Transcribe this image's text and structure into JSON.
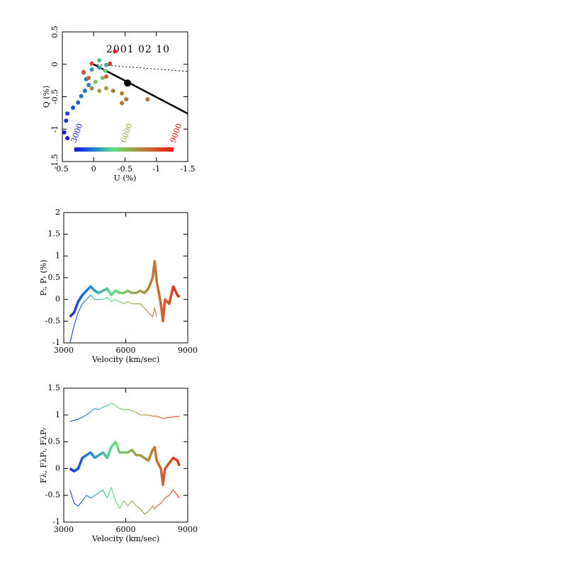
{
  "chart_data": [
    {
      "type": "scatter",
      "title": "2001 02 10",
      "x_label": "U (%)",
      "y_label": "Q (%)",
      "xlim": [
        0.5,
        -1.5
      ],
      "xticks": [
        0.5,
        0,
        -0.5,
        -1,
        -1.5
      ],
      "ylim": [
        -1.5,
        0.5
      ],
      "yticks": [
        -1.5,
        -1,
        -0.5,
        0,
        0.5
      ],
      "x": [
        0.42,
        0.47,
        0.44,
        0.42,
        0.33,
        0.25,
        0.2,
        0.14,
        0.08,
        0.12,
        0.16,
        0.03,
        -0.09,
        -0.2,
        -0.09,
        -0.18,
        -0.14,
        -0.03,
        -0.2,
        -0.09,
        0.03,
        -0.31,
        -0.45,
        -0.52,
        -0.45,
        -0.86,
        -0.34,
        -0.26,
        0.03,
        0.16,
        0.08,
        -0.2
      ],
      "y": [
        -1.14,
        -1.05,
        -0.87,
        -0.76,
        -0.67,
        -0.59,
        -0.49,
        -0.41,
        -0.32,
        -0.23,
        -0.13,
        -0.08,
        -0.05,
        -0.01,
        0.06,
        -0.1,
        -0.21,
        -0.27,
        -0.37,
        -0.41,
        -0.37,
        -0.41,
        -0.45,
        -0.54,
        -0.6,
        -0.54,
        0.2,
        0.01,
        0.01,
        -0.12,
        -0.21,
        -0.19
      ],
      "colors": [
        "#1818d8",
        "#1818d8",
        "#1830d8",
        "#1840d8",
        "#1850d8",
        "#2060d0",
        "#2070d0",
        "#2070d0",
        "#2080d0",
        "#2878c8",
        "#3080c0",
        "#3090c0",
        "#30a0b0",
        "#40b0a0",
        "#50c090",
        "#60d080",
        "#70c070",
        "#80c060",
        "#a0a040",
        "#a0a040",
        "#a09040",
        "#b08030",
        "#b08030",
        "#b07030",
        "#b07030",
        "#c07030",
        "#e02020",
        "#e03020",
        "#e04020",
        "#d05030",
        "#d06030",
        "#c06030"
      ],
      "lines": [
        {
          "style": "solid",
          "x": [
            0,
            -1.5
          ],
          "y": [
            0,
            -0.76
          ]
        },
        {
          "style": "dotted",
          "x": [
            0,
            -1.5
          ],
          "y": [
            0,
            -0.11
          ]
        }
      ],
      "marker": {
        "x": -0.54,
        "y": -0.29
      },
      "colorbar": {
        "lim": [
          3000,
          9000
        ],
        "ticks": [
          3000,
          6000,
          9000
        ],
        "colors": [
          "#1010e0",
          "#2080d0",
          "#60e080",
          "#a0a040",
          "#d06030",
          "#f01010"
        ]
      }
    },
    {
      "type": "line",
      "x_label": "Velocity (km/sec)",
      "y_label": "Pₜ, Pᵣ (%)",
      "xlim": [
        3000,
        9000
      ],
      "xticks": [
        3000,
        6000,
        9000
      ],
      "ylim": [
        -1,
        2
      ],
      "yticks": [
        -1,
        -0.5,
        0,
        0.5,
        1,
        1.5,
        2
      ],
      "x": [
        3300,
        3500,
        3700,
        3900,
        4100,
        4300,
        4500,
        4700,
        4900,
        5100,
        5300,
        5500,
        5700,
        5900,
        6100,
        6300,
        6500,
        6700,
        6900,
        7100,
        7300,
        7400,
        7500,
        7700,
        7800,
        7900,
        8100,
        8300,
        8500,
        8600
      ],
      "series": [
        {
          "style": "thick",
          "values": [
            -0.4,
            -0.3,
            -0.05,
            0.1,
            0.2,
            0.3,
            0.2,
            0.15,
            0.2,
            0.25,
            0.1,
            0.2,
            0.15,
            0.15,
            0.2,
            0.15,
            0.15,
            0.2,
            0.15,
            0.25,
            0.5,
            0.88,
            0.4,
            -0.1,
            -0.5,
            0.0,
            -0.1,
            0.3,
            0.1,
            0.05
          ]
        },
        {
          "style": "thin",
          "values": [
            -1.0,
            -0.6,
            -0.3,
            -0.1,
            0.0,
            0.1,
            0.0,
            0.0,
            0.0,
            0.05,
            -0.05,
            0.0,
            -0.05,
            -0.1,
            -0.05,
            -0.1,
            -0.1,
            -0.1,
            -0.2,
            -0.3,
            -0.4,
            -0.2,
            -0.4,
            null,
            null,
            null,
            null,
            null,
            null,
            null
          ]
        }
      ]
    },
    {
      "type": "line",
      "x_label": "Velocity (km/sec)",
      "y_label": "Fλ, FλPₜ, FλPᵣ",
      "xlim": [
        3000,
        9000
      ],
      "xticks": [
        3000,
        6000,
        9000
      ],
      "ylim": [
        -1,
        1.5
      ],
      "yticks": [
        -1,
        -0.5,
        0,
        0.5,
        1,
        1.5
      ],
      "x": [
        3300,
        3500,
        3700,
        3900,
        4100,
        4300,
        4500,
        4700,
        4900,
        5100,
        5300,
        5500,
        5700,
        5900,
        6100,
        6300,
        6500,
        6700,
        6900,
        7100,
        7300,
        7400,
        7500,
        7700,
        7800,
        7900,
        8100,
        8300,
        8500,
        8600
      ],
      "series": [
        {
          "style": "thin",
          "values": [
            0.88,
            0.9,
            0.92,
            0.96,
            1.0,
            1.06,
            1.12,
            1.1,
            1.15,
            1.17,
            1.22,
            1.18,
            1.12,
            1.1,
            1.1,
            1.08,
            1.05,
            1.0,
            1.0,
            1.0,
            0.98,
            0.98,
            0.98,
            0.95,
            0.94,
            0.94,
            0.95,
            0.97,
            0.97,
            0.98
          ]
        },
        {
          "style": "thick",
          "values": [
            0.0,
            -0.05,
            0.0,
            0.2,
            0.25,
            0.3,
            0.2,
            0.25,
            0.3,
            0.2,
            0.4,
            0.5,
            0.3,
            0.3,
            0.3,
            0.35,
            0.25,
            0.25,
            0.2,
            0.15,
            0.35,
            0.4,
            0.15,
            0.0,
            -0.3,
            0.0,
            0.1,
            0.2,
            0.15,
            0.05
          ]
        },
        {
          "style": "thin",
          "values": [
            -0.4,
            -0.65,
            -0.7,
            -0.6,
            -0.5,
            -0.55,
            -0.5,
            -0.45,
            -0.4,
            -0.55,
            -0.35,
            -0.6,
            -0.75,
            -0.6,
            -0.7,
            -0.6,
            -0.7,
            -0.75,
            -0.85,
            -0.8,
            -0.7,
            -0.75,
            -0.7,
            -0.65,
            -0.6,
            -0.55,
            -0.5,
            -0.4,
            -0.5,
            -0.55
          ]
        }
      ]
    }
  ]
}
